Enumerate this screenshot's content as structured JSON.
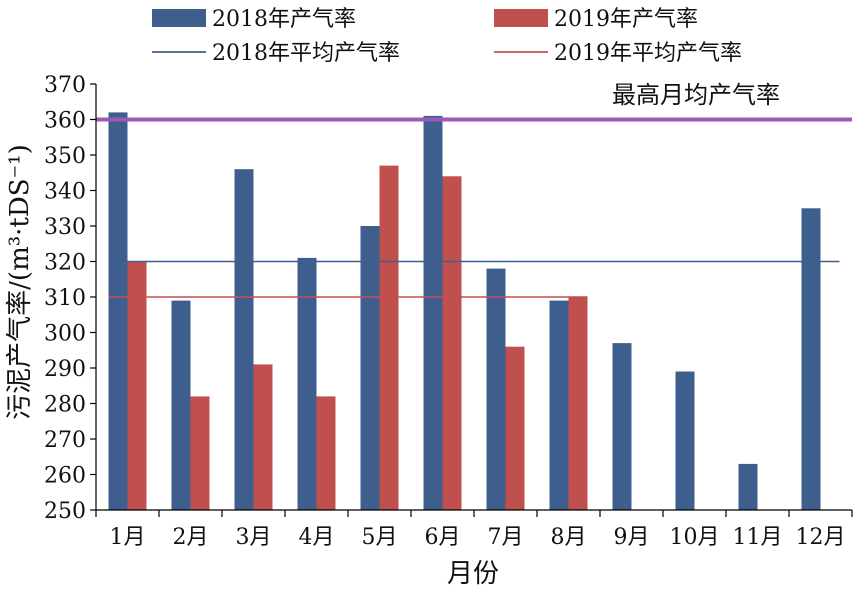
{
  "chart_data": {
    "type": "bar",
    "categories": [
      "1月",
      "2月",
      "3月",
      "4月",
      "5月",
      "6月",
      "7月",
      "8月",
      "9月",
      "10月",
      "11月",
      "12月"
    ],
    "series": [
      {
        "name": "2018年产气率",
        "color": "#3e5f8e",
        "values": [
          362,
          309,
          346,
          321,
          330,
          361,
          318,
          309,
          297,
          289,
          263,
          335
        ]
      },
      {
        "name": "2019年产气率",
        "color": "#c0504d",
        "values": [
          320,
          282,
          291,
          282,
          347,
          344,
          296,
          310,
          null,
          null,
          null,
          null
        ]
      }
    ],
    "reference_lines": [
      {
        "name": "2018年平均产气率",
        "value": 320,
        "color": "#3e5f8e",
        "from": 0,
        "to": 11
      },
      {
        "name": "2019年平均产气率",
        "value": 310,
        "color": "#c0504d",
        "from": 0,
        "to": 7
      },
      {
        "name": "最高月均产气率",
        "value": 360,
        "color": "#9b59b6",
        "full_width": true
      }
    ],
    "xlabel": "月份",
    "ylabel": "污泥产气率/(m³·tDS⁻¹)",
    "ylim": [
      250,
      370
    ],
    "yticks": [
      250,
      260,
      270,
      280,
      290,
      300,
      310,
      320,
      330,
      340,
      350,
      360,
      370
    ],
    "legend_position": "top",
    "grid": false
  }
}
